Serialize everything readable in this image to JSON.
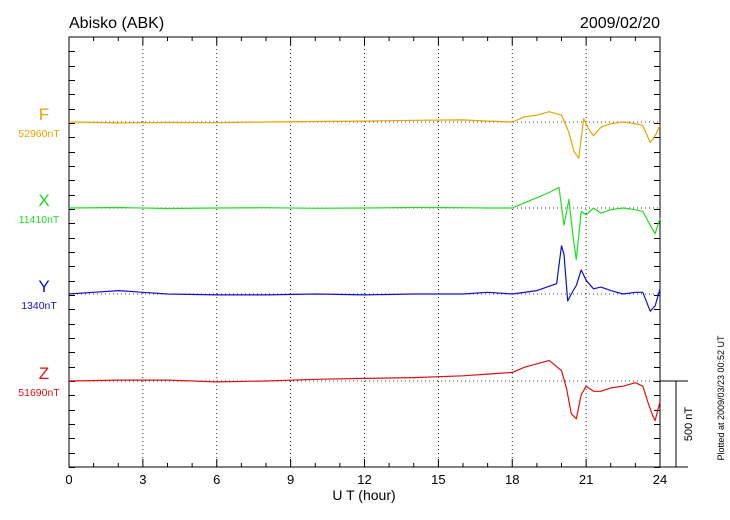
{
  "header": {
    "station": "Abisko (ABK)",
    "date": "2009/02/20"
  },
  "footer": {
    "plotted": "Plotted at 2009/03/23 00:52 UT",
    "scale_label": "500 nT"
  },
  "chart_data": {
    "type": "line",
    "title": "Abisko (ABK)",
    "date": "2009/02/20",
    "xlabel": "U T (hour)",
    "xlim": [
      0,
      24
    ],
    "xticks": [
      0,
      3,
      6,
      9,
      12,
      15,
      18,
      21,
      24
    ],
    "xtick_labels": [
      "0",
      "3",
      "6",
      "9",
      "12",
      "15",
      "18",
      "21",
      "24"
    ],
    "grid": "dotted vertical lines every 3 hours; dotted baseline for each trace",
    "scale_bar_nT": 500,
    "series": [
      {
        "name": "F",
        "baseline_label": "52960nT",
        "color": "#e8a400",
        "x": [
          0,
          2,
          4,
          6,
          8,
          10,
          12,
          14,
          16,
          17,
          18,
          18.5,
          19,
          19.5,
          20,
          20.3,
          20.5,
          20.7,
          20.9,
          21.1,
          21.3,
          21.6,
          22,
          22.5,
          23,
          23.3,
          23.6,
          23.8,
          24
        ],
        "values": [
          0,
          -5,
          -3,
          -4,
          0,
          3,
          5,
          10,
          12,
          5,
          0,
          30,
          40,
          60,
          40,
          -60,
          -170,
          -210,
          20,
          -40,
          -80,
          -30,
          -10,
          0,
          -10,
          -20,
          -120,
          -80,
          -20
        ]
      },
      {
        "name": "X",
        "baseline_label": "11410nT",
        "color": "#22dd22",
        "x": [
          0,
          2,
          4,
          6,
          8,
          10,
          12,
          14,
          16,
          17,
          18,
          18.5,
          19,
          19.5,
          19.9,
          20.1,
          20.3,
          20.5,
          20.6,
          20.8,
          21,
          21.3,
          21.6,
          22,
          22.5,
          23,
          23.3,
          23.6,
          23.8,
          24
        ],
        "values": [
          0,
          3,
          -3,
          0,
          2,
          -2,
          0,
          3,
          2,
          0,
          0,
          30,
          60,
          90,
          120,
          -100,
          50,
          -200,
          -300,
          -20,
          -40,
          0,
          -30,
          -10,
          0,
          -10,
          -20,
          -100,
          -150,
          -60
        ]
      },
      {
        "name": "Y",
        "baseline_label": "1340nT",
        "color": "#1010cc",
        "x": [
          0,
          1,
          2,
          3,
          4,
          6,
          8,
          10,
          12,
          14,
          16,
          17,
          18,
          19,
          19.8,
          20,
          20.1,
          20.25,
          20.4,
          20.6,
          20.8,
          21,
          21.3,
          21.6,
          22,
          22.5,
          23,
          23.3,
          23.6,
          23.8,
          24
        ],
        "values": [
          0,
          10,
          20,
          10,
          0,
          -5,
          -5,
          0,
          -5,
          0,
          0,
          10,
          0,
          20,
          60,
          280,
          230,
          -40,
          0,
          50,
          140,
          80,
          30,
          40,
          20,
          0,
          10,
          10,
          -100,
          -70,
          30
        ]
      },
      {
        "name": "Z",
        "baseline_label": "51690nT",
        "color": "#dd1111",
        "x": [
          0,
          2,
          4,
          6,
          8,
          10,
          12,
          14,
          16,
          17,
          18,
          18.5,
          19,
          19.5,
          20,
          20.2,
          20.4,
          20.6,
          20.8,
          21,
          21.3,
          21.6,
          22,
          22.5,
          23,
          23.3,
          23.5,
          23.7,
          23.8,
          24
        ],
        "values": [
          0,
          5,
          5,
          -5,
          0,
          10,
          15,
          20,
          30,
          40,
          50,
          80,
          100,
          120,
          60,
          -40,
          -190,
          -220,
          -80,
          -30,
          -60,
          -60,
          -40,
          -30,
          -10,
          -30,
          -120,
          -200,
          -230,
          -120
        ]
      }
    ]
  }
}
